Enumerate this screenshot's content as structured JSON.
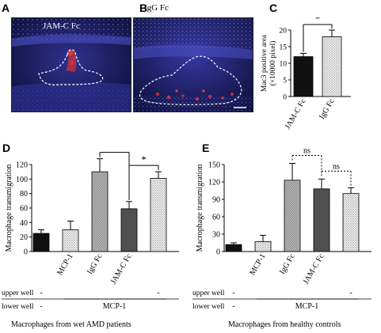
{
  "panels": {
    "A": {
      "letter": "A",
      "label": "JAM-C Fc"
    },
    "B": {
      "letter": "B",
      "label": "IgG Fc"
    },
    "C": {
      "letter": "C"
    },
    "D": {
      "letter": "D",
      "footnote": "Macrophages from wet AMD patients"
    },
    "E": {
      "letter": "E",
      "footnote": "Macrophages from healthy controls"
    }
  },
  "rows": {
    "upper": "upper well",
    "lower": "lower well"
  },
  "colors": {
    "black": "#111111",
    "dark_gray": "#505050",
    "stipple": "#d9d9d9",
    "hatch": "#a8a8a8",
    "micro_bg": "#0f1038",
    "micro_blue": "#3a3fa8",
    "micro_red": "#c0303b"
  },
  "chart_data": [
    {
      "panel": "C",
      "type": "bar",
      "categories": [
        "JAM-C Fc",
        "IgG Fc"
      ],
      "values": [
        12,
        18
      ],
      "errors": [
        1,
        2
      ],
      "ylabel": "Mac3 positive area",
      "ylabel2": "(×10000 pixel)",
      "ylim": [
        0,
        20
      ],
      "yticks": [
        0,
        5,
        10,
        15,
        20
      ],
      "fills": [
        "black",
        "stipple"
      ],
      "significance": [
        {
          "from": 0,
          "to": 1,
          "label": "*"
        }
      ]
    },
    {
      "panel": "D",
      "type": "bar",
      "categories": [
        "",
        "MCP-1",
        "IgG Fc",
        "JAM-C Fc",
        ""
      ],
      "values": [
        25,
        30,
        110,
        59,
        101
      ],
      "errors": [
        5,
        12,
        18,
        10,
        9
      ],
      "ylabel": "Macrophage transmigration",
      "ylim": [
        0,
        120
      ],
      "yticks": [
        0,
        20,
        40,
        60,
        80,
        100,
        120
      ],
      "fills": [
        "black",
        "stipple",
        "hatch",
        "dark_gray",
        "stipple"
      ],
      "upper_well": [
        "-",
        "",
        "",
        "",
        "-"
      ],
      "lower_well": [
        "-",
        "MCP-1"
      ],
      "significance": [
        {
          "from": 2,
          "to": 3,
          "label": "*"
        },
        {
          "from": 3,
          "to": 4,
          "label": "*"
        }
      ]
    },
    {
      "panel": "E",
      "type": "bar",
      "categories": [
        "",
        "MCP-1",
        "IgG Fc",
        "JAM-C Fc",
        ""
      ],
      "values": [
        12,
        17,
        123,
        108,
        100
      ],
      "errors": [
        3,
        11,
        29,
        17,
        10
      ],
      "ylabel": "Macrophage transmigration",
      "ylim": [
        0,
        150
      ],
      "yticks": [
        0,
        30,
        60,
        90,
        120,
        150
      ],
      "fills": [
        "black",
        "stipple",
        "hatch",
        "dark_gray",
        "stipple"
      ],
      "upper_well": [
        "-",
        "",
        "",
        "",
        "-"
      ],
      "lower_well": [
        "-",
        "MCP-1"
      ],
      "significance": [
        {
          "from": 2,
          "to": 3,
          "label": "ns"
        },
        {
          "from": 3,
          "to": 4,
          "label": "ns"
        }
      ]
    }
  ]
}
